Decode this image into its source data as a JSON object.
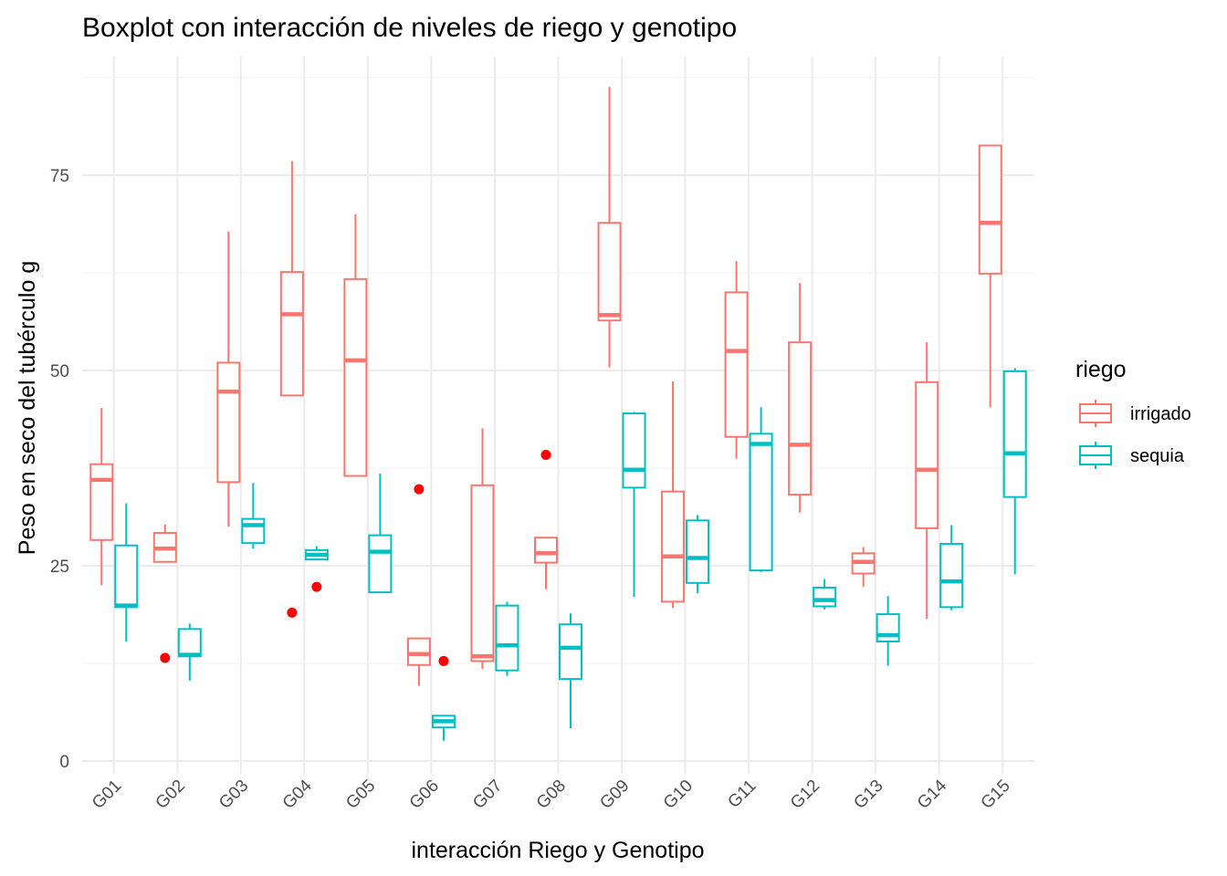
{
  "chart_data": {
    "type": "boxplot",
    "title": "Boxplot con interacción de niveles de riego y genotipo",
    "xlabel": "interacción Riego y Genotipo",
    "ylabel": "Peso en seco del tubérculo g",
    "ylim": [
      -2,
      88
    ],
    "yticks": [
      0,
      25,
      50,
      75
    ],
    "grid": true,
    "legend": {
      "title": "riego",
      "position": "right"
    },
    "outlier_color": "#FF0000",
    "categories": [
      "G01",
      "G02",
      "G03",
      "G04",
      "G05",
      "G06",
      "G07",
      "G08",
      "G09",
      "G10",
      "G11",
      "G12",
      "G13",
      "G14",
      "G15"
    ],
    "series": [
      {
        "name": "irrigado",
        "color": "#F8766D",
        "boxes": [
          {
            "min": 22.5,
            "q1": 28.3,
            "median": 36.0,
            "q3": 38.0,
            "max": 45.2,
            "outliers": []
          },
          {
            "min": 25.5,
            "q1": 25.5,
            "median": 27.2,
            "q3": 29.2,
            "max": 30.3,
            "outliers": [
              13.2
            ]
          },
          {
            "min": 30.0,
            "q1": 35.7,
            "median": 47.3,
            "q3": 51.0,
            "max": 67.8,
            "outliers": []
          },
          {
            "min": 46.8,
            "q1": 46.8,
            "median": 57.2,
            "q3": 62.6,
            "max": 76.8,
            "outliers": [
              19.0
            ]
          },
          {
            "min": 36.5,
            "q1": 36.5,
            "median": 51.3,
            "q3": 61.7,
            "max": 70.0,
            "outliers": []
          },
          {
            "min": 9.6,
            "q1": 12.3,
            "median": 13.7,
            "q3": 15.7,
            "max": 15.7,
            "outliers": [
              34.8
            ]
          },
          {
            "min": 11.8,
            "q1": 12.8,
            "median": 13.4,
            "q3": 35.3,
            "max": 42.6,
            "outliers": []
          },
          {
            "min": 22.0,
            "q1": 25.4,
            "median": 26.6,
            "q3": 28.6,
            "max": 28.6,
            "outliers": [
              39.2
            ]
          },
          {
            "min": 50.4,
            "q1": 56.4,
            "median": 57.1,
            "q3": 68.9,
            "max": 86.3,
            "outliers": []
          },
          {
            "min": 19.6,
            "q1": 20.4,
            "median": 26.2,
            "q3": 34.5,
            "max": 48.6,
            "outliers": []
          },
          {
            "min": 38.7,
            "q1": 41.5,
            "median": 52.5,
            "q3": 60.0,
            "max": 64.0,
            "outliers": []
          },
          {
            "min": 31.8,
            "q1": 34.1,
            "median": 40.5,
            "q3": 53.6,
            "max": 61.2,
            "outliers": []
          },
          {
            "min": 22.3,
            "q1": 24.0,
            "median": 25.5,
            "q3": 26.6,
            "max": 27.4,
            "outliers": []
          },
          {
            "min": 18.2,
            "q1": 29.8,
            "median": 37.3,
            "q3": 48.5,
            "max": 53.6,
            "outliers": []
          },
          {
            "min": 45.3,
            "q1": 62.4,
            "median": 68.9,
            "q3": 78.8,
            "max": 78.8,
            "outliers": []
          }
        ]
      },
      {
        "name": "sequia",
        "color": "#00BFC4",
        "boxes": [
          {
            "min": 15.3,
            "q1": 19.7,
            "median": 19.9,
            "q3": 27.6,
            "max": 33.0,
            "outliers": []
          },
          {
            "min": 10.3,
            "q1": 13.4,
            "median": 13.6,
            "q3": 16.9,
            "max": 17.6,
            "outliers": []
          },
          {
            "min": 27.2,
            "q1": 27.9,
            "median": 30.2,
            "q3": 31.0,
            "max": 35.6,
            "outliers": []
          },
          {
            "min": 25.8,
            "q1": 25.8,
            "median": 26.4,
            "q3": 27.0,
            "max": 27.5,
            "outliers": [
              22.3
            ]
          },
          {
            "min": 21.6,
            "q1": 21.6,
            "median": 26.8,
            "q3": 28.9,
            "max": 36.8,
            "outliers": []
          },
          {
            "min": 2.6,
            "q1": 4.3,
            "median": 5.1,
            "q3": 5.8,
            "max": 5.8,
            "outliers": [
              12.8
            ]
          },
          {
            "min": 10.9,
            "q1": 11.6,
            "median": 14.8,
            "q3": 19.9,
            "max": 20.4,
            "outliers": []
          },
          {
            "min": 4.2,
            "q1": 10.5,
            "median": 14.5,
            "q3": 17.5,
            "max": 18.9,
            "outliers": []
          },
          {
            "min": 21.0,
            "q1": 35.0,
            "median": 37.3,
            "q3": 44.5,
            "max": 44.7,
            "outliers": []
          },
          {
            "min": 21.5,
            "q1": 22.8,
            "median": 26.0,
            "q3": 30.8,
            "max": 31.5,
            "outliers": []
          },
          {
            "min": 24.2,
            "q1": 24.4,
            "median": 40.6,
            "q3": 41.9,
            "max": 45.3,
            "outliers": []
          },
          {
            "min": 19.4,
            "q1": 19.8,
            "median": 20.6,
            "q3": 22.2,
            "max": 23.3,
            "outliers": []
          },
          {
            "min": 12.2,
            "q1": 15.3,
            "median": 16.1,
            "q3": 18.8,
            "max": 21.1,
            "outliers": []
          },
          {
            "min": 19.3,
            "q1": 19.7,
            "median": 23.0,
            "q3": 27.8,
            "max": 30.2,
            "outliers": []
          },
          {
            "min": 23.9,
            "q1": 33.8,
            "median": 39.4,
            "q3": 49.9,
            "max": 50.3,
            "outliers": []
          }
        ]
      }
    ]
  }
}
